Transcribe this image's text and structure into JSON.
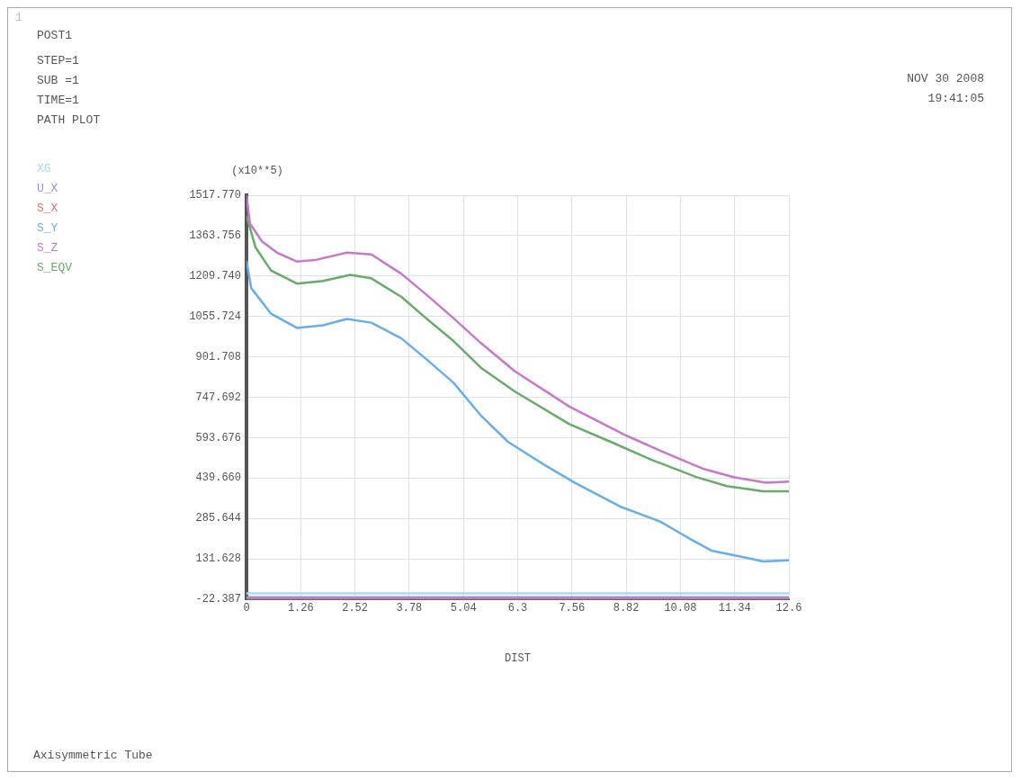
{
  "chart_data": {
    "type": "line",
    "xlabel": "DIST",
    "ylabel": "(x10**5)",
    "annotations": [
      "1",
      "POST1",
      "STEP=1",
      "SUB =1",
      "TIME=1",
      "PATH PLOT",
      "NOV 30 2008",
      "19:41:05",
      "Axisymmetric Tube"
    ],
    "xlim": [
      0,
      12.6
    ],
    "xticks": [
      0,
      1.26,
      2.52,
      3.78,
      5.04,
      6.3,
      7.56,
      8.82,
      10.08,
      11.34,
      12.6
    ],
    "ylim": [
      -22.387,
      1517.77
    ],
    "yticks": [
      -22.387,
      131.628,
      285.644,
      {
        "value": 439.66,
        "label": "439.660"
      },
      593.676,
      747.692,
      901.708,
      1055.724,
      {
        "value": 1209.74,
        "label": "1209.740"
      },
      1363.756,
      {
        "value": 1517.77,
        "label": "1517.770"
      }
    ],
    "grid": true,
    "legend": "left",
    "marker": "none",
    "line_style": "solid",
    "series": [
      {
        "name": "XG",
        "color": "#a8dcea",
        "x": [
          0,
          12.6
        ],
        "values": [
          0,
          0
        ]
      },
      {
        "name": "U_X",
        "color": "#9a8ee0",
        "x": [
          0,
          12.6
        ],
        "values": [
          -15,
          -15
        ]
      },
      {
        "name": "S_X",
        "color": "#e07070",
        "x": [
          0,
          12.6
        ],
        "values": [
          -22,
          -22
        ]
      },
      {
        "name": "S_Y",
        "color": "#6aaee8",
        "x": [
          0,
          0.11,
          0.57,
          1.17,
          1.78,
          2.33,
          2.9,
          3.6,
          4.17,
          4.81,
          5.44,
          6.08,
          6.92,
          7.62,
          8.68,
          9.61,
          10.31,
          10.8,
          11.52,
          12.0,
          12.6
        ],
        "values": [
          1268,
          1164,
          1066,
          1012,
          1022,
          1046,
          1032,
          972,
          894,
          803,
          679,
          577,
          490,
          422,
          331,
          274,
          207,
          163,
          139,
          122,
          126
        ]
      },
      {
        "name": "S_Z",
        "color": "#c878c8",
        "x": [
          0,
          0.08,
          0.36,
          0.71,
          1.17,
          1.63,
          2.33,
          2.9,
          3.6,
          4.17,
          4.81,
          5.44,
          6.23,
          7.5,
          8.83,
          9.61,
          10.59,
          11.31,
          12.07,
          12.6
        ],
        "values": [
          1517,
          1410,
          1342,
          1299,
          1265,
          1272,
          1299,
          1292,
          1218,
          1140,
          1049,
          955,
          847,
          712,
          601,
          544,
          476,
          443,
          422,
          426
        ]
      },
      {
        "name": "S_EQV",
        "color": "#6aaa6a",
        "x": [
          0,
          0.21,
          0.57,
          1.17,
          1.78,
          2.41,
          2.9,
          3.6,
          4.17,
          4.81,
          5.44,
          6.23,
          7.5,
          8.47,
          9.4,
          10.46,
          11.16,
          12.0,
          12.6
        ],
        "values": [
          1440,
          1319,
          1231,
          1181,
          1191,
          1214,
          1201,
          1130,
          1049,
          962,
          861,
          770,
          645,
          577,
          510,
          443,
          409,
          389,
          389
        ]
      }
    ]
  }
}
